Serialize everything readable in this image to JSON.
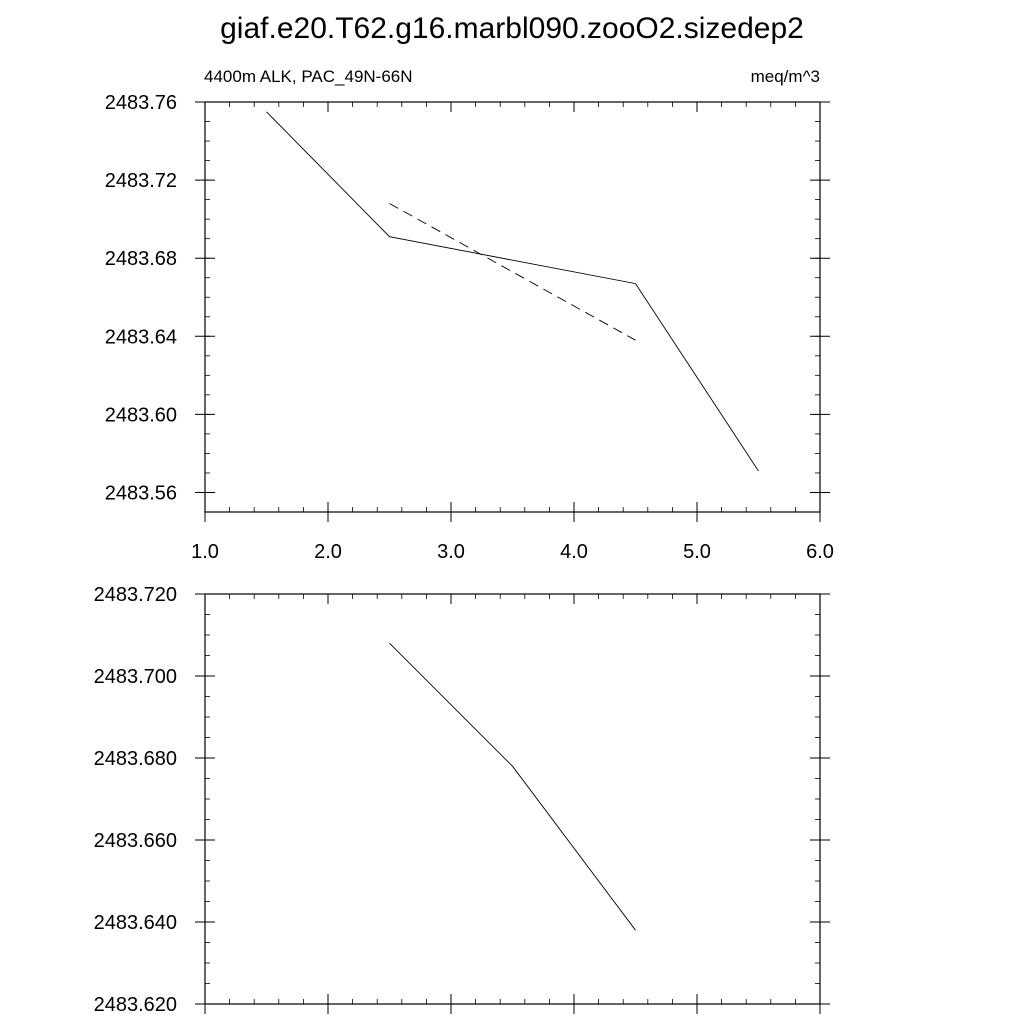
{
  "title": "giaf.e20.T62.g16.marbl090.zooO2.sizedep2",
  "chart_data": [
    {
      "type": "line",
      "left_label": "4400m ALK, PAC_49N-66N",
      "right_label": "meq/m^3",
      "xlim": [
        1.0,
        6.0
      ],
      "ylim": [
        2483.55,
        2483.76
      ],
      "x_ticks": [
        1.0,
        2.0,
        3.0,
        4.0,
        5.0,
        6.0
      ],
      "x_tick_labels": [
        "1.0",
        "2.0",
        "3.0",
        "4.0",
        "5.0",
        "6.0"
      ],
      "y_ticks": [
        2483.56,
        2483.6,
        2483.64,
        2483.68,
        2483.72,
        2483.76
      ],
      "y_tick_labels": [
        "2483.56",
        "2483.60",
        "2483.64",
        "2483.68",
        "2483.72",
        "2483.76"
      ],
      "grid": false,
      "series": [
        {
          "style": "solid",
          "x": [
            1.5,
            2.5,
            4.5,
            5.5
          ],
          "y": [
            2483.755,
            2483.691,
            2483.667,
            2483.571
          ]
        },
        {
          "style": "dashed",
          "x": [
            2.5,
            4.5
          ],
          "y": [
            2483.708,
            2483.638
          ]
        }
      ]
    },
    {
      "type": "line",
      "xlim": [
        1.0,
        6.0
      ],
      "ylim": [
        2483.62,
        2483.72
      ],
      "x_ticks": [
        1.0,
        2.0,
        3.0,
        4.0,
        5.0,
        6.0
      ],
      "x_tick_labels": [],
      "y_ticks": [
        2483.62,
        2483.64,
        2483.66,
        2483.68,
        2483.7,
        2483.72
      ],
      "y_tick_labels": [
        "2483.620",
        "2483.640",
        "2483.660",
        "2483.680",
        "2483.700",
        "2483.720"
      ],
      "grid": false,
      "series": [
        {
          "style": "solid",
          "x": [
            2.5,
            3.5,
            4.5
          ],
          "y": [
            2483.708,
            2483.678,
            2483.638
          ]
        }
      ]
    }
  ]
}
